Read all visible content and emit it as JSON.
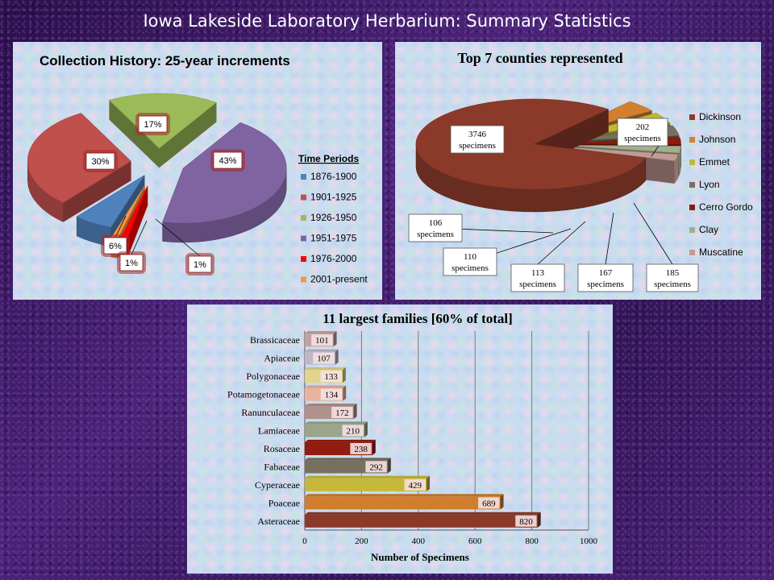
{
  "page_title": "Iowa Lakeside Laboratory Herbarium:  Summary Statistics",
  "chart_data": [
    {
      "type": "pie",
      "title": "Collection History:   25-year increments",
      "legend_title": "Time Periods",
      "legend_position": "right",
      "slices": [
        {
          "label": "1876-1900",
          "value": 6,
          "display": "6%",
          "color": "#4f81bd"
        },
        {
          "label": "1901-1925",
          "value": 30,
          "display": "30%",
          "color": "#c0504d"
        },
        {
          "label": "1926-1950",
          "value": 17,
          "display": "17%",
          "color": "#9bbb59"
        },
        {
          "label": "1951-1975",
          "value": 43,
          "display": "43%",
          "color": "#8064a2"
        },
        {
          "label": "1976-2000",
          "value": 1,
          "display": "1%",
          "color": "#ff0000"
        },
        {
          "label": "2001-present",
          "value": 1,
          "display": "1%",
          "color": "#f79646"
        }
      ]
    },
    {
      "type": "pie",
      "title": "Top 7 counties represented",
      "legend_position": "right",
      "slices": [
        {
          "label": "Dickinson",
          "value": 3746,
          "display_num": "3746",
          "display_unit": "specimens",
          "color": "#8b3a2a"
        },
        {
          "label": "Johnson",
          "value": 202,
          "display_num": "202",
          "display_unit": "specimens",
          "color": "#d2802f"
        },
        {
          "label": "Emmet",
          "value": 185,
          "display_num": "185",
          "display_unit": "specimens",
          "color": "#c2b835"
        },
        {
          "label": "Lyon",
          "value": 167,
          "display_num": "167",
          "display_unit": "specimens",
          "color": "#76705e"
        },
        {
          "label": "Cerro Gordo",
          "value": 113,
          "display_num": "113",
          "display_unit": "specimens",
          "color": "#8e1a0e"
        },
        {
          "label": "Clay",
          "value": 110,
          "display_num": "110",
          "display_unit": "specimens",
          "color": "#a3ae8f"
        },
        {
          "label": "Muscatine",
          "value": 106,
          "display_num": "106",
          "display_unit": "specimens",
          "color": "#c39a94"
        }
      ]
    },
    {
      "type": "bar",
      "orientation": "horizontal",
      "title": "11 largest families [60% of total]",
      "xlabel": "Number  of Specimens",
      "xlim": [
        0,
        1000
      ],
      "xticks": [
        0,
        200,
        400,
        600,
        800,
        1000
      ],
      "grid": true,
      "categories": [
        "Brassicaceae",
        "Apiaceae",
        "Polygonaceae",
        "Potamogetonaceae",
        "Ranunculaceae",
        "Lamiaceae",
        "Rosaceae",
        "Fabaceae",
        "Cyperaceae",
        "Poaceae",
        "Asteraceae"
      ],
      "values": [
        101,
        107,
        133,
        134,
        172,
        210,
        238,
        292,
        429,
        689,
        820
      ],
      "colors": [
        "#c3a1a0",
        "#c2b7c8",
        "#e0d58a",
        "#e8b39c",
        "#b0928c",
        "#9aa58a",
        "#921c10",
        "#77705f",
        "#c6b83a",
        "#cf7e2e",
        "#8b3a2a"
      ]
    }
  ]
}
